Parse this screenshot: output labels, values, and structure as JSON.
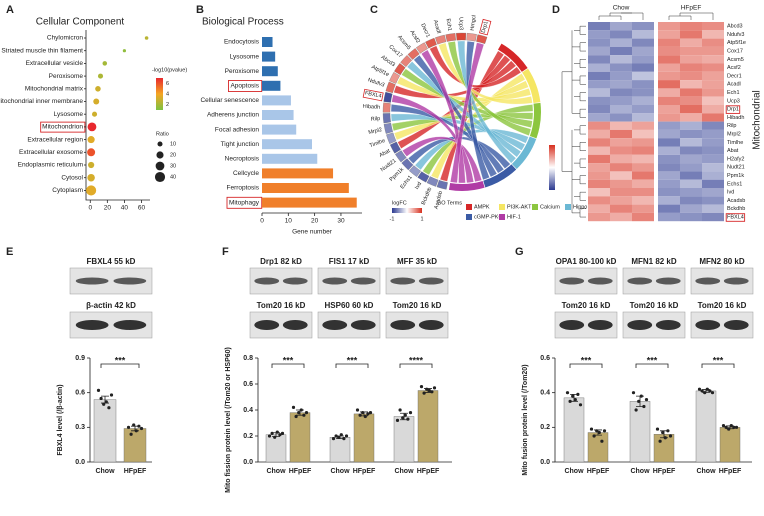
{
  "panels": [
    "A",
    "B",
    "C",
    "D",
    "E",
    "F",
    "G"
  ],
  "chart_data": [
    {
      "type": "dot",
      "title": "Cellular Component",
      "categories": [
        "Chylomicron",
        "Striated muscle thin filament",
        "Extracellular vesicle",
        "Peroxisome",
        "Mitochondrial matrix",
        "Mitochondrial inner membrane",
        "Lysosome",
        "Mitochondrion",
        "Extracellular region",
        "Extracellular exosome",
        "Endoplasmic reticulum",
        "Cytosol",
        "Cytoplasm"
      ],
      "values": [
        66,
        40,
        17,
        12,
        9,
        7,
        5,
        2,
        1,
        1,
        1,
        1,
        1
      ],
      "sizes": [
        5,
        4,
        8,
        10,
        12,
        14,
        10,
        30,
        20,
        25,
        15,
        22,
        40
      ],
      "color_values": [
        2.5,
        1.5,
        2,
        2.2,
        3,
        3.2,
        3,
        7,
        3.5,
        6,
        3,
        3.2,
        3.5
      ],
      "colors": [
        "#7cc242",
        "#f5a623",
        "#e8282e"
      ],
      "color_title": "-log10(pvalue)",
      "clim": [
        1,
        7
      ],
      "color_ticks": [
        6,
        4,
        2
      ],
      "size_title": "Ratio",
      "size_ticks": [
        10,
        20,
        30,
        40
      ],
      "xlim": [
        -5,
        70
      ],
      "xticks": [
        0,
        20,
        40,
        60
      ],
      "highlight": [
        7
      ]
    },
    {
      "type": "hbar",
      "title": "Biological Process",
      "categories": [
        "Endocytosis",
        "Lysosome",
        "Peroxisome",
        "Apoptosis",
        "Cellular senescence",
        "Adherens junction",
        "Focal adhesion",
        "Tight junction",
        "Necroptosis",
        "Cellcycle",
        "Ferroptosis",
        "Mitophagy"
      ],
      "values": [
        4,
        5,
        6,
        7,
        11,
        12,
        13,
        19,
        21,
        27,
        33,
        36
      ],
      "colors": [
        "#2e6fb0",
        "#2e6fb0",
        "#2e6fb0",
        "#2e6fb0",
        "#a9c6e8",
        "#a9c6e8",
        "#a9c6e8",
        "#a9c6e8",
        "#a9c6e8",
        "#f07f2a",
        "#f07f2a",
        "#f07f2a"
      ],
      "xlabel": "Gene number",
      "xlim": [
        0,
        38
      ],
      "xticks": [
        0,
        10,
        20,
        30
      ],
      "highlight": [
        3,
        11
      ]
    },
    {
      "type": "bar",
      "ylabel": "FBXL4 level (/β-actin)",
      "categories": [
        "Chow",
        "HFpEF"
      ],
      "values": [
        0.54,
        0.29
      ],
      "errors": [
        0.03,
        0.02
      ],
      "points": [
        [
          0.62,
          0.55,
          0.5,
          0.52,
          0.47,
          0.58
        ],
        [
          0.3,
          0.24,
          0.32,
          0.27,
          0.31,
          0.29
        ]
      ],
      "bar_colors": [
        "#d9d9d9",
        "#bca86a"
      ],
      "significance": [
        "***"
      ],
      "ylim": [
        0,
        0.9
      ],
      "yticks": [
        {
          "value": 0,
          "label": "0.0"
        },
        0.3,
        0.6,
        0.9
      ]
    },
    {
      "type": "bar",
      "ylabel": "Mito fission protein level (/Tom20 or HSP60)",
      "categories": [
        "Chow",
        "HFpEF",
        "Chow",
        "HFpEF",
        "Chow",
        "HFpEF"
      ],
      "values": [
        0.21,
        0.38,
        0.19,
        0.37,
        0.35,
        0.55
      ],
      "errors": [
        0.015,
        0.02,
        0.01,
        0.015,
        0.025,
        0.015
      ],
      "points": [
        [
          0.2,
          0.22,
          0.19,
          0.23,
          0.21,
          0.22
        ],
        [
          0.42,
          0.35,
          0.38,
          0.4,
          0.36,
          0.38
        ],
        [
          0.18,
          0.2,
          0.19,
          0.21,
          0.18,
          0.2
        ],
        [
          0.4,
          0.36,
          0.38,
          0.35,
          0.37,
          0.38
        ],
        [
          0.32,
          0.4,
          0.34,
          0.36,
          0.33,
          0.38
        ],
        [
          0.58,
          0.53,
          0.56,
          0.55,
          0.54,
          0.57
        ]
      ],
      "bar_colors": [
        "#d9d9d9",
        "#bca86a"
      ],
      "significance": [
        "***",
        "***",
        "****"
      ],
      "ylim": [
        0,
        0.8
      ],
      "yticks": [
        {
          "value": 0,
          "label": "0.0"
        },
        0.2,
        0.4,
        0.6,
        0.8
      ]
    },
    {
      "type": "bar",
      "ylabel": "Mito fusion protein level (/Tom20)",
      "categories": [
        "Chow",
        "HFpEF",
        "Chow",
        "HFpEF",
        "Chow",
        "HFpEF"
      ],
      "values": [
        0.37,
        0.17,
        0.35,
        0.16,
        0.41,
        0.2
      ],
      "errors": [
        0.02,
        0.015,
        0.03,
        0.02,
        0.008,
        0.008
      ],
      "points": [
        [
          0.4,
          0.35,
          0.38,
          0.36,
          0.39,
          0.33
        ],
        [
          0.19,
          0.15,
          0.18,
          0.17,
          0.12,
          0.18
        ],
        [
          0.4,
          0.3,
          0.35,
          0.38,
          0.32,
          0.36
        ],
        [
          0.19,
          0.12,
          0.17,
          0.14,
          0.18,
          0.15
        ],
        [
          0.42,
          0.41,
          0.4,
          0.42,
          0.41,
          0.4
        ],
        [
          0.21,
          0.2,
          0.19,
          0.21,
          0.2,
          0.2
        ]
      ],
      "bar_colors": [
        "#d9d9d9",
        "#bca86a"
      ],
      "significance": [
        "***",
        "***",
        "***"
      ],
      "ylim": [
        0,
        0.6
      ],
      "yticks": [
        {
          "value": 0,
          "label": "0.0"
        },
        0.2,
        0.4,
        0.6
      ]
    }
  ],
  "chord": {
    "genes": [
      "Acadsb",
      "Bckdhb",
      "Ivd",
      "Echs1",
      "Ppm1k",
      "Nudt21",
      "Abat",
      "Timlhe",
      "Mrpl2",
      "Rilp",
      "Hibadh",
      "FBXL4",
      "Ndufv3",
      "Atp5f1e",
      "Abcd3",
      "Cox17",
      "Acsm5",
      "Acsf2",
      "Decr1",
      "Acadl",
      "Ech1",
      "Ucp3",
      "Hmgcl",
      "Drp1"
    ],
    "logfc": [
      -0.7,
      -0.6,
      -0.8,
      -0.5,
      -0.7,
      -0.6,
      -0.8,
      -0.5,
      -0.6,
      -0.7,
      0.6,
      -0.9,
      0.7,
      0.5,
      0.8,
      0.6,
      0.7,
      0.5,
      0.8,
      0.6,
      0.7,
      0.9,
      0.5,
      0.8
    ],
    "highlight": [
      11,
      23
    ],
    "logfc_title": "logFC",
    "logfc_ticks": [
      -1,
      1
    ],
    "terms_title": "GO Terms",
    "terms": [
      {
        "name": "AMPK",
        "color": "#d62728"
      },
      {
        "name": "PI3K-AKT",
        "color": "#f5e663"
      },
      {
        "name": "Calcium",
        "color": "#8cc63f"
      },
      {
        "name": "Hippo",
        "color": "#6bb8d4"
      },
      {
        "name": "cGMP-PKG",
        "color": "#3b5ba5"
      },
      {
        "name": "HIF-1",
        "color": "#b03ba5"
      }
    ]
  },
  "heatmap": {
    "columns": [
      "Chow",
      "HFpEF"
    ],
    "title": "Mitochondrial",
    "genes": [
      "Abcd3",
      "Ndufv3",
      "Atp5f1e",
      "Cox17",
      "Acsm5",
      "Acsf2",
      "Decr1",
      "Acadl",
      "Ech1",
      "Ucp3",
      "Drp1",
      "Hibadh",
      "Rilp",
      "Mrpl2",
      "Timlhe",
      "Abat",
      "H2afy2",
      "Nudt21",
      "Ppm1k",
      "Echs1",
      "Ivd",
      "Acadsb",
      "Bckdhb",
      "FBXL4"
    ],
    "clim": [
      -2,
      2
    ],
    "highlight": [
      10,
      23
    ],
    "values": [
      [
        -1.3,
        -0.9,
        -1.1,
        1.0,
        1.2,
        1.1
      ],
      [
        -1.0,
        -1.2,
        -0.7,
        0.9,
        1.3,
        0.7
      ],
      [
        -1.1,
        -0.8,
        -1.2,
        1.2,
        0.8,
        1.1
      ],
      [
        -0.9,
        -1.3,
        -0.9,
        1.1,
        1.0,
        1.0
      ],
      [
        -1.2,
        -0.7,
        -1.0,
        1.3,
        0.9,
        0.8
      ],
      [
        -0.8,
        -1.1,
        -1.3,
        0.9,
        1.2,
        1.1
      ],
      [
        -1.3,
        -1.0,
        -0.6,
        1.0,
        1.1,
        0.9
      ],
      [
        -1.0,
        -0.9,
        -1.1,
        1.4,
        0.7,
        0.9
      ],
      [
        -0.7,
        -1.2,
        -1.1,
        0.8,
        1.3,
        1.0
      ],
      [
        -1.1,
        -1.0,
        -0.8,
        1.2,
        1.1,
        0.6
      ],
      [
        -1.2,
        -0.8,
        -1.0,
        0.9,
        1.4,
        0.8
      ],
      [
        -0.9,
        -1.1,
        -0.7,
        1.0,
        0.8,
        1.3
      ],
      [
        1.1,
        0.7,
        0.9,
        -1.0,
        -0.8,
        -1.2
      ],
      [
        0.8,
        1.3,
        0.6,
        -0.9,
        -1.1,
        -1.0
      ],
      [
        1.2,
        0.9,
        1.0,
        -1.3,
        -0.7,
        -1.0
      ],
      [
        0.7,
        1.1,
        1.2,
        -0.8,
        -1.2,
        -1.1
      ],
      [
        1.3,
        0.8,
        0.7,
        -1.1,
        -0.9,
        -1.0
      ],
      [
        0.9,
        1.2,
        1.0,
        -1.2,
        -1.0,
        -0.7
      ],
      [
        1.0,
        0.6,
        1.3,
        -0.9,
        -1.3,
        -0.8
      ],
      [
        1.2,
        1.0,
        0.8,
        -1.0,
        -0.7,
        -1.3
      ],
      [
        0.6,
        1.1,
        1.1,
        -1.1,
        -1.0,
        -0.9
      ],
      [
        1.1,
        0.9,
        0.7,
        -0.8,
        -1.2,
        -1.1
      ],
      [
        0.8,
        1.2,
        1.0,
        -1.3,
        -0.9,
        -0.7
      ],
      [
        1.0,
        0.8,
        1.2,
        -1.0,
        -1.1,
        -1.2
      ]
    ]
  },
  "blots": [
    {
      "top": "FBXL4 55 kD",
      "bottom": "β-actin 42 kD"
    },
    {
      "top": "Drp1 82 kD",
      "bottom": "Tom20 16 kD"
    },
    {
      "top": "FIS1 17 kD",
      "bottom": "HSP60 60 kD"
    },
    {
      "top": "MFF 35 kD",
      "bottom": "Tom20 16 kD"
    },
    {
      "top": "OPA1 80-100 kD",
      "bottom": "Tom20 16 kD"
    },
    {
      "top": "MFN1 82 kD",
      "bottom": "Tom20 16 kD"
    },
    {
      "top": "MFN2 80 kD",
      "bottom": "Tom20 16 kD"
    }
  ]
}
